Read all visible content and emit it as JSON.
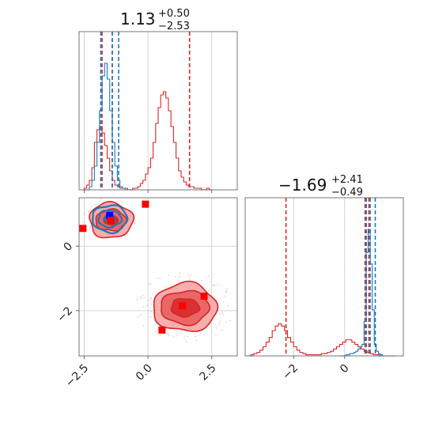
{
  "colors": {
    "red": "#d62728",
    "blue": "#1f77b4",
    "red_fill": "#f08080",
    "marker_blue": "#0000ff",
    "marker_red": "#ff0000"
  },
  "chart_data": {
    "type": "corner-plot",
    "params": [
      {
        "name": "",
        "title": {
          "median": "1.13",
          "plus": "+0.50",
          "minus": "−2.53"
        },
        "range": [
          -2.7,
          3.5
        ],
        "ticks": [
          -2.5,
          0.0,
          2.5
        ],
        "tick_labels": [
          "−2.5",
          "0.0",
          "2.5"
        ]
      },
      {
        "name": "",
        "title": {
          "median": "−1.69",
          "plus": "+2.41",
          "minus": "−0.49"
        },
        "range": [
          -3.9,
          2.3
        ],
        "ticks": [
          -2,
          0
        ],
        "tick_labels": [
          "−2",
          "0"
        ]
      }
    ],
    "y_range_2d": [
      -3.4,
      1.5
    ],
    "y_ticks_2d": [
      0,
      -2
    ],
    "y_tick_labels_2d": [
      "0",
      "−2"
    ],
    "series": [
      {
        "color": "red",
        "hist_p1": {
          "bin_start": -2.5,
          "bin_width": 0.1,
          "counts": [
            1,
            3,
            6,
            14,
            30,
            38,
            40,
            36,
            28,
            20,
            12,
            6,
            3,
            2,
            1,
            1,
            1,
            0,
            0,
            1,
            1,
            2,
            4,
            6,
            10,
            14,
            20,
            30,
            42,
            52,
            60,
            62,
            58,
            50,
            40,
            30,
            20,
            12,
            8,
            5,
            3,
            2,
            2,
            1,
            1,
            1,
            0,
            0,
            1,
            0
          ]
        },
        "quantiles_p1": [
          -1.8,
          -1.4,
          1.63
        ],
        "hist_p2": {
          "bin_start": -3.8,
          "bin_width": 0.12,
          "counts": [
            0,
            1,
            2,
            3,
            5,
            8,
            12,
            16,
            22,
            26,
            28,
            26,
            22,
            16,
            12,
            8,
            5,
            3,
            2,
            1,
            1,
            1,
            1,
            1,
            2,
            2,
            3,
            4,
            6,
            8,
            10,
            12,
            14,
            14,
            12,
            10,
            8,
            6,
            4,
            3,
            2,
            1,
            1,
            0,
            0,
            0,
            0,
            0
          ]
        },
        "quantiles_p2": [
          -2.3,
          0.8,
          0.95
        ]
      },
      {
        "color": "blue",
        "hist_p1": {
          "bin_start": -2.5,
          "bin_width": 0.1,
          "counts": [
            0,
            0,
            2,
            6,
            15,
            30,
            50,
            72,
            80,
            70,
            50,
            30,
            15,
            6,
            2,
            1,
            0,
            0,
            0,
            0
          ]
        },
        "quantiles_p1": [
          -1.85,
          -1.4,
          -1.15
        ],
        "hist_p2": {
          "bin_start": -0.2,
          "bin_width": 0.08,
          "counts": [
            0,
            0,
            0,
            1,
            1,
            2,
            2,
            3,
            4,
            6,
            8,
            10,
            30,
            90,
            110,
            80,
            40,
            10,
            4,
            2,
            1,
            0,
            0,
            0
          ]
        },
        "quantiles_p2": [
          0.85,
          1.0,
          1.2
        ]
      }
    ],
    "markers": [
      {
        "color": "marker_blue",
        "x": -1.5,
        "y": 0.95
      },
      {
        "color": "marker_red",
        "x": -1.45,
        "y": 0.8
      },
      {
        "color": "marker_red",
        "x": -0.1,
        "y": 1.3
      },
      {
        "color": "marker_red",
        "x": -2.55,
        "y": 0.55
      },
      {
        "color": "marker_red",
        "x": 2.2,
        "y": -1.55
      },
      {
        "color": "marker_red",
        "x": 1.35,
        "y": -1.85
      },
      {
        "color": "marker_red",
        "x": 0.55,
        "y": -2.6
      }
    ],
    "contours": [
      {
        "color": "red",
        "cx": -1.45,
        "cy": 0.8,
        "levels": [
          [
            0.28,
            0.14
          ],
          [
            0.6,
            0.33
          ],
          [
            0.85,
            0.55
          ]
        ]
      },
      {
        "color": "red",
        "cx": 1.45,
        "cy": -1.9,
        "levels": [
          [
            0.55,
            0.28
          ],
          [
            0.95,
            0.52
          ],
          [
            1.25,
            0.75
          ]
        ]
      },
      {
        "color": "blue",
        "cx": -1.5,
        "cy": 0.85,
        "levels": [
          [
            0.22,
            0.12
          ],
          [
            0.45,
            0.26
          ],
          [
            0.68,
            0.42
          ]
        ]
      }
    ]
  }
}
